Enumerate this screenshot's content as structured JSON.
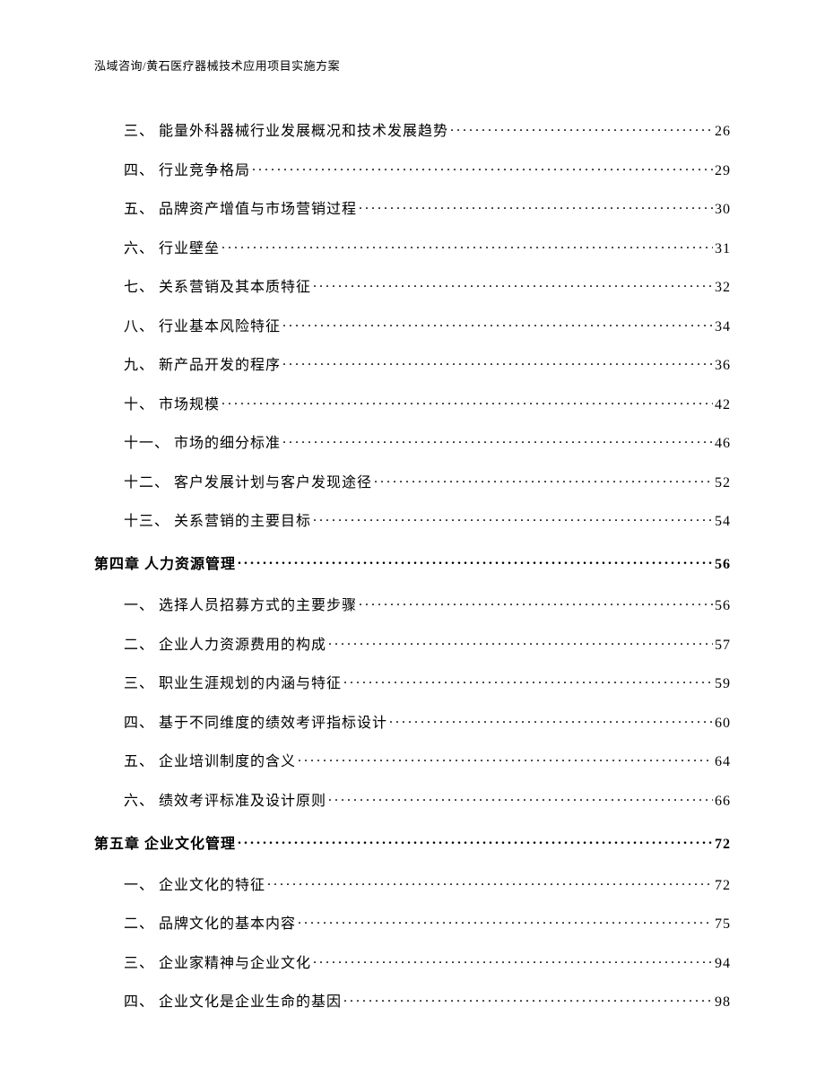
{
  "header": "泓域咨询/黄石医疗器械技术应用项目实施方案",
  "toc": [
    {
      "type": "item",
      "num": "三、",
      "title": "能量外科器械行业发展概况和技术发展趋势",
      "page": "26"
    },
    {
      "type": "item",
      "num": "四、",
      "title": "行业竞争格局",
      "page": "29"
    },
    {
      "type": "item",
      "num": "五、",
      "title": "品牌资产增值与市场营销过程",
      "page": "30"
    },
    {
      "type": "item",
      "num": "六、",
      "title": "行业壁垒",
      "page": "31"
    },
    {
      "type": "item",
      "num": "七、",
      "title": "关系营销及其本质特征",
      "page": "32"
    },
    {
      "type": "item",
      "num": "八、",
      "title": "行业基本风险特征",
      "page": "34"
    },
    {
      "type": "item",
      "num": "九、",
      "title": "新产品开发的程序",
      "page": "36"
    },
    {
      "type": "item",
      "num": "十、",
      "title": "市场规模",
      "page": "42"
    },
    {
      "type": "item",
      "num": "十一、",
      "title": "市场的细分标准",
      "page": "46"
    },
    {
      "type": "item",
      "num": "十二、",
      "title": "客户发展计划与客户发现途径",
      "page": "52"
    },
    {
      "type": "item",
      "num": "十三、",
      "title": "关系营销的主要目标",
      "page": "54"
    },
    {
      "type": "chapter",
      "num": "第四章",
      "title": "人力资源管理",
      "page": "56"
    },
    {
      "type": "item",
      "num": "一、",
      "title": "选择人员招募方式的主要步骤",
      "page": "56"
    },
    {
      "type": "item",
      "num": "二、",
      "title": "企业人力资源费用的构成",
      "page": "57"
    },
    {
      "type": "item",
      "num": "三、",
      "title": "职业生涯规划的内涵与特征",
      "page": "59"
    },
    {
      "type": "item",
      "num": "四、",
      "title": "基于不同维度的绩效考评指标设计",
      "page": "60"
    },
    {
      "type": "item",
      "num": "五、",
      "title": "企业培训制度的含义",
      "page": "64"
    },
    {
      "type": "item",
      "num": "六、",
      "title": "绩效考评标准及设计原则",
      "page": "66"
    },
    {
      "type": "chapter",
      "num": "第五章",
      "title": "企业文化管理",
      "page": "72"
    },
    {
      "type": "item",
      "num": "一、",
      "title": "企业文化的特征",
      "page": "72"
    },
    {
      "type": "item",
      "num": "二、",
      "title": "品牌文化的基本内容",
      "page": "75"
    },
    {
      "type": "item",
      "num": "三、",
      "title": "企业家精神与企业文化",
      "page": "94"
    },
    {
      "type": "item",
      "num": "四、",
      "title": "企业文化是企业生命的基因",
      "page": "98"
    }
  ]
}
